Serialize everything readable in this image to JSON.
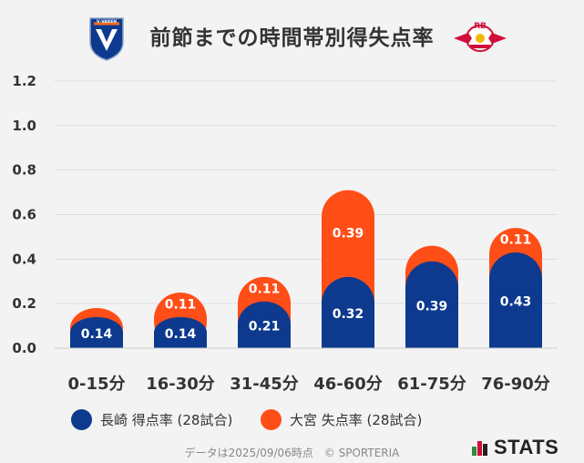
{
  "header": {
    "title": "前節までの時間帯別得失点率",
    "left_logo_text": "V·VAREN",
    "right_logo_text": "RB"
  },
  "chart_data": {
    "type": "bar",
    "stacked": true,
    "title": "前節までの時間帯別得失点率",
    "categories": [
      "0-15分",
      "16-30分",
      "31-45分",
      "46-60分",
      "61-75分",
      "76-90分"
    ],
    "series": [
      {
        "name": "長崎 得点率 (28試合)",
        "color": "#0d3a8e",
        "values": [
          0.14,
          0.14,
          0.21,
          0.32,
          0.39,
          0.43
        ]
      },
      {
        "name": "大宮 失点率 (28試合)",
        "color": "#ff4e17",
        "values": [
          0.04,
          0.11,
          0.11,
          0.39,
          0.07,
          0.11
        ]
      }
    ],
    "series_labels": [
      [
        "0.14",
        "0.14",
        "0.21",
        "0.32",
        "0.39",
        "0.43"
      ],
      [
        "",
        "0.11",
        "0.11",
        "0.39",
        "",
        "0.11"
      ]
    ],
    "yticks": [
      "0.0",
      "0.2",
      "0.4",
      "0.6",
      "0.8",
      "1.0",
      "1.2"
    ],
    "ylim": [
      0,
      1.2
    ],
    "grid": true,
    "legend": "bottom"
  },
  "legend": {
    "home_label": "長崎 得点率 (28試合)",
    "away_label": "大宮 失点率 (28試合)"
  },
  "footer": {
    "note": "データは2025/09/06時点　© SPORTERIA",
    "brand": "STATS"
  },
  "colors": {
    "home": "#0d3a8e",
    "away": "#ff4e17",
    "background": "#f3f3f3"
  }
}
